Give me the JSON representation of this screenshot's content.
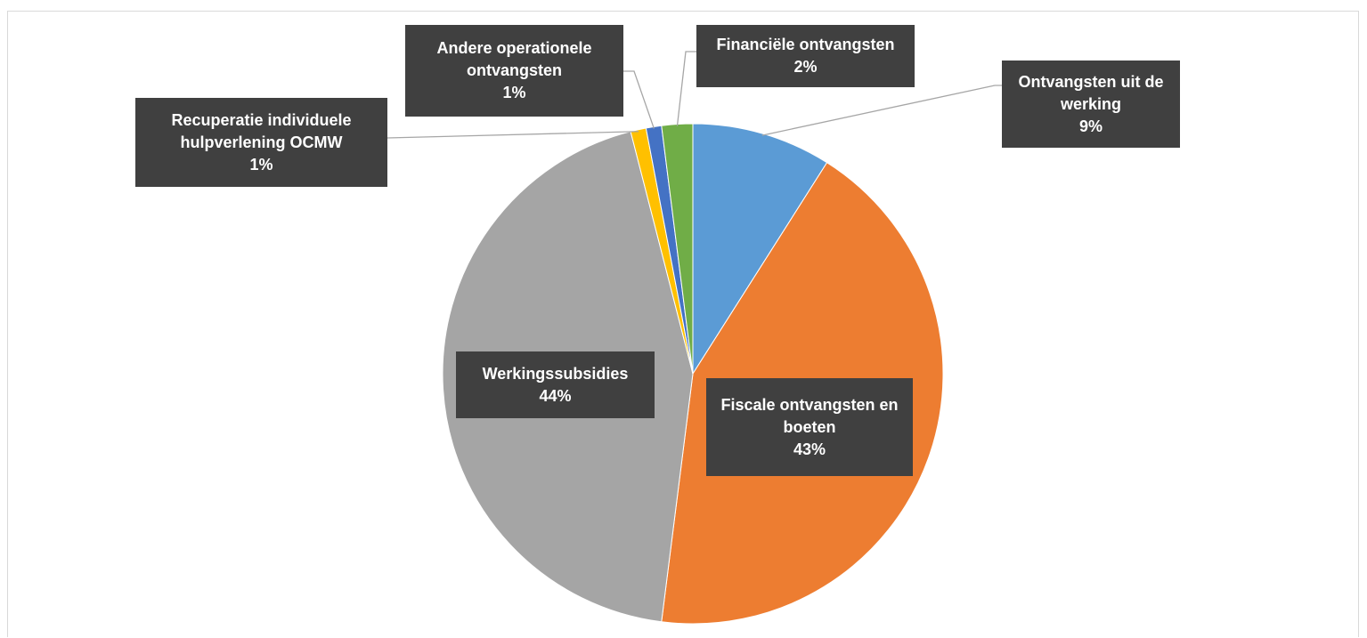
{
  "chart_data": {
    "type": "pie",
    "categories": [
      "Ontvangsten uit de werking",
      "Fiscale ontvangsten en boeten",
      "Werkingssubsidies",
      "Recuperatie individuele hulpverlening OCMW",
      "Andere operationele ontvangsten",
      "Financiële ontvangsten"
    ],
    "values": [
      9,
      43,
      44,
      1,
      1,
      2
    ],
    "value_labels": [
      "9%",
      "43%",
      "44%",
      "1%",
      "1%",
      "2%"
    ],
    "colors": [
      "#5b9bd5",
      "#ed7d31",
      "#a5a5a5",
      "#ffc000",
      "#4472c4",
      "#70ad47"
    ]
  }
}
